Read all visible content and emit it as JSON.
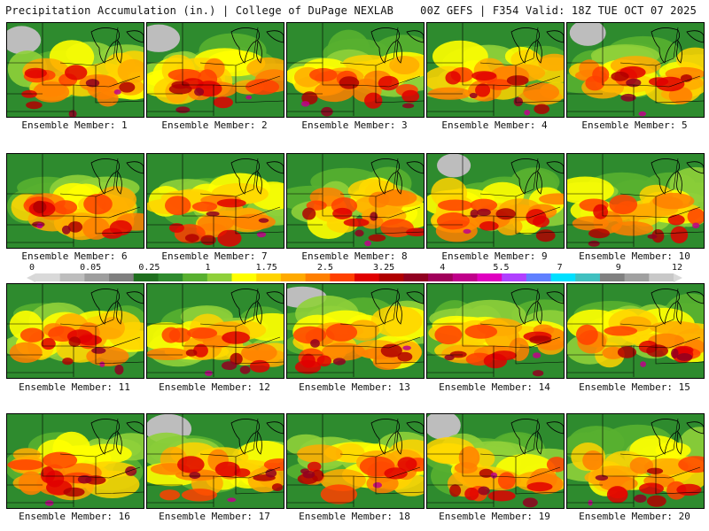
{
  "header": {
    "left": "Precipitation Accumulation (in.) | College of DuPage NEXLAB",
    "right": "00Z GEFS | F354 Valid: 18Z TUE OCT 07 2025"
  },
  "colorbar": {
    "labels": [
      "0",
      "0.05",
      "0.25",
      "1",
      "1.75",
      "2.5",
      "3.25",
      "4",
      "5.5",
      "7",
      "9",
      "12"
    ],
    "colors": [
      "#d9d9d9",
      "#bdbdbd",
      "#9e9e9e",
      "#7f7f7f",
      "#1f6f1f",
      "#2e8b2e",
      "#58b030",
      "#8fd03a",
      "#ffff00",
      "#ffd400",
      "#ffaa00",
      "#ff7f00",
      "#ff4000",
      "#e00000",
      "#b00000",
      "#900020",
      "#a0005a",
      "#c0008a",
      "#e000c0",
      "#b040ff",
      "#6080ff",
      "#00e0ff",
      "#40c0c0",
      "#808080",
      "#a0a0a0",
      "#c8c8c8"
    ]
  },
  "panels": [
    {
      "label": "Ensemble Member: 1"
    },
    {
      "label": "Ensemble Member: 2"
    },
    {
      "label": "Ensemble Member: 3"
    },
    {
      "label": "Ensemble Member: 4"
    },
    {
      "label": "Ensemble Member: 5"
    },
    {
      "label": "Ensemble Member: 6"
    },
    {
      "label": "Ensemble Member: 7"
    },
    {
      "label": "Ensemble Member: 8"
    },
    {
      "label": "Ensemble Member: 9"
    },
    {
      "label": "Ensemble Member: 10"
    },
    {
      "label": "Ensemble Member: 11"
    },
    {
      "label": "Ensemble Member: 12"
    },
    {
      "label": "Ensemble Member: 13"
    },
    {
      "label": "Ensemble Member: 14"
    },
    {
      "label": "Ensemble Member: 15"
    },
    {
      "label": "Ensemble Member: 16"
    },
    {
      "label": "Ensemble Member: 17"
    },
    {
      "label": "Ensemble Member: 18"
    },
    {
      "label": "Ensemble Member: 19"
    },
    {
      "label": "Ensemble Member: 20"
    }
  ]
}
